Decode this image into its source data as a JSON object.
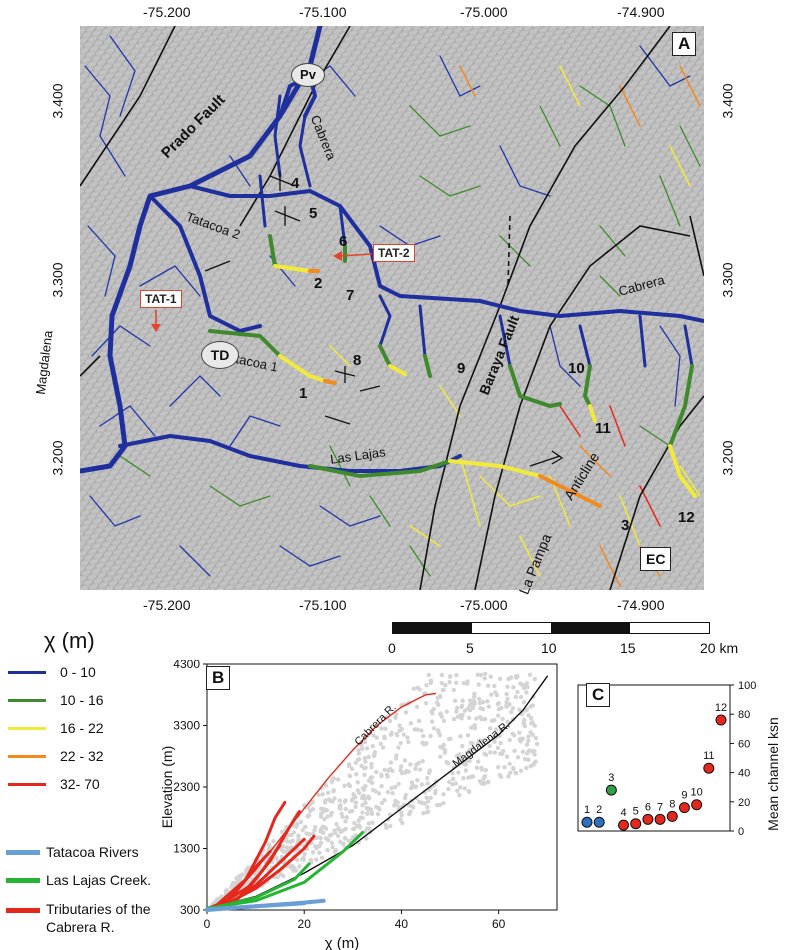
{
  "panelA": {
    "letter": "A",
    "corner_box": "EC",
    "x_ticks_top": [
      "-75.200",
      "-75.100",
      "-75.000",
      "-74.900"
    ],
    "x_ticks_bottom": [
      "-75.200",
      "-75.100",
      "-75.000",
      "-74.900"
    ],
    "y_ticks_left": [
      "3.400",
      "3.300",
      "3.200"
    ],
    "y_ticks_right": [
      "3.400",
      "3.300",
      "3.200"
    ],
    "labels": {
      "prado_fault": "Prado Fault",
      "cabrera_north": "Cabrera",
      "tatacoa2": "Tatacoa 2",
      "tatacoa1": "Tatacoa 1",
      "magdalena": "Magdalena",
      "las_lajas": "Las Lajas",
      "baraya_fault": "Baraya Fault",
      "cabrera_east": "Cabrera",
      "la_pampa": "La Pampa",
      "anticline": "Anticline",
      "pv": "Pv",
      "td": "TD",
      "tat1": "TAT-1",
      "tat2": "TAT-2"
    },
    "basin_numbers": [
      "1",
      "2",
      "3",
      "4",
      "5",
      "6",
      "7",
      "8",
      "9",
      "10",
      "11",
      "12"
    ],
    "scale_bar": {
      "labels": [
        "0",
        "5",
        "10",
        "15",
        "20 km"
      ]
    }
  },
  "legend": {
    "chi_title": "χ (m)",
    "chi_classes": [
      {
        "label": "0 - 10",
        "color": "#1f2f9e"
      },
      {
        "label": "10 - 16",
        "color": "#3f8a2c"
      },
      {
        "label": "16 - 22",
        "color": "#f2ea3a"
      },
      {
        "label": "22 - 32",
        "color": "#f28a1e"
      },
      {
        "label": "32- 70",
        "color": "#e4291c"
      }
    ],
    "groups": [
      {
        "label": "Tatacoa Rivers",
        "color": "#6a9fd6"
      },
      {
        "label": "Las Lajas Creek.",
        "color": "#27b434"
      },
      {
        "label": "Tributaries of the Cabrera R.",
        "color": "#e4291c"
      }
    ]
  },
  "chart_data": [
    {
      "panel": "B",
      "type": "line",
      "xlabel": "χ (m)",
      "ylabel": "Elevation (m)",
      "xlim": [
        0,
        72
      ],
      "ylim": [
        300,
        4300
      ],
      "x_ticks": [
        "0",
        "20",
        "40",
        "60"
      ],
      "y_ticks": [
        "300",
        "1300",
        "2300",
        "3300",
        "4300"
      ],
      "series": [
        {
          "name": "Cabrera R.",
          "color": "#e4291c",
          "x": [
            0,
            5,
            10,
            15,
            20,
            25,
            30,
            35,
            40,
            45,
            47
          ],
          "y": [
            330,
            500,
            950,
            1450,
            1950,
            2450,
            2900,
            3300,
            3600,
            3800,
            3820
          ]
        },
        {
          "name": "Magdalena R.",
          "color": "#111111",
          "x": [
            0,
            10,
            20,
            30,
            40,
            50,
            60,
            65,
            70
          ],
          "y": [
            320,
            520,
            900,
            1350,
            1950,
            2550,
            3150,
            3550,
            4100
          ]
        },
        {
          "name": "",
          "color": "#e4291c",
          "width": 3,
          "x": [
            2,
            8,
            12,
            14,
            16
          ],
          "y": [
            380,
            800,
            1400,
            1800,
            2050
          ]
        },
        {
          "name": "",
          "color": "#e4291c",
          "width": 3,
          "x": [
            3,
            9,
            13,
            17,
            19
          ],
          "y": [
            400,
            700,
            1100,
            1650,
            1900
          ]
        },
        {
          "name": "",
          "color": "#e4291c",
          "width": 3,
          "x": [
            4,
            10,
            15,
            20,
            22
          ],
          "y": [
            400,
            650,
            950,
            1300,
            1500
          ]
        },
        {
          "name": "",
          "color": "#e4291c",
          "width": 3,
          "x": [
            5,
            10,
            16,
            20
          ],
          "y": [
            420,
            700,
            1150,
            1450
          ]
        },
        {
          "name": "",
          "color": "#e4291c",
          "width": 3,
          "x": [
            6,
            11,
            15
          ],
          "y": [
            450,
            900,
            1350
          ]
        },
        {
          "name": "",
          "color": "#e4291c",
          "width": 3,
          "x": [
            3,
            6,
            10,
            13
          ],
          "y": [
            380,
            600,
            1000,
            1250
          ]
        },
        {
          "name": "",
          "color": "#27b434",
          "width": 3,
          "x": [
            0,
            10,
            20,
            28,
            32
          ],
          "y": [
            330,
            450,
            750,
            1250,
            1560
          ]
        },
        {
          "name": "",
          "color": "#27b434",
          "width": 3,
          "x": [
            2,
            10,
            18,
            21
          ],
          "y": [
            350,
            500,
            800,
            1050
          ]
        },
        {
          "name": "",
          "color": "#6a9fd6",
          "width": 4,
          "x": [
            0,
            10,
            20,
            24
          ],
          "y": [
            300,
            360,
            420,
            450
          ]
        },
        {
          "name": "",
          "color": "#6a9fd6",
          "width": 4,
          "x": [
            0,
            8,
            16,
            20
          ],
          "y": [
            310,
            350,
            390,
            410
          ]
        }
      ]
    },
    {
      "panel": "C",
      "type": "scatter",
      "ylabel": "Mean channel ksn",
      "ylim": [
        0,
        100
      ],
      "y_ticks": [
        "0",
        "20",
        "40",
        "60",
        "80",
        "100"
      ],
      "points": [
        {
          "label": "1",
          "ksn": 6,
          "color": "#2f6fc0"
        },
        {
          "label": "2",
          "ksn": 6,
          "color": "#2f6fc0"
        },
        {
          "label": "3",
          "ksn": 28,
          "color": "#2f9e44"
        },
        {
          "label": "4",
          "ksn": 4,
          "color": "#e4291c"
        },
        {
          "label": "5",
          "ksn": 5,
          "color": "#e4291c"
        },
        {
          "label": "6",
          "ksn": 8,
          "color": "#e4291c"
        },
        {
          "label": "7",
          "ksn": 8,
          "color": "#e4291c"
        },
        {
          "label": "8",
          "ksn": 10,
          "color": "#e4291c"
        },
        {
          "label": "9",
          "ksn": 16,
          "color": "#e4291c"
        },
        {
          "label": "10",
          "ksn": 18,
          "color": "#e4291c"
        },
        {
          "label": "11",
          "ksn": 43,
          "color": "#e4291c"
        },
        {
          "label": "12",
          "ksn": 76,
          "color": "#e4291c"
        }
      ]
    }
  ]
}
